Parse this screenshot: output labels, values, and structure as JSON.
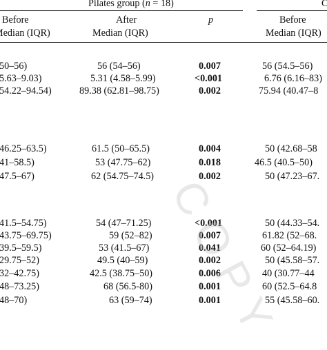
{
  "header": {
    "group_label": "Pilates group (",
    "group_n": "n",
    "group_suffix": " = 18)",
    "cut_right_glyph": "C",
    "col_before_1": "Before",
    "col_median_1": "Median (IQR)",
    "col_after": "After",
    "col_median_2": "Median (IQR)",
    "col_p": "p",
    "col_before_2": "Before",
    "col_median_3": "Median (IQR)"
  },
  "rows": [
    {
      "before": "50–56)",
      "after": "56 (54–56)",
      "p": "0.007",
      "before2": "56 (54.5–56)"
    },
    {
      "before": "5.63–9.03)",
      "after": "5.31 (4.58–5.99)",
      "p": "<0.001",
      "before2": "6.76 (6.16–83)"
    },
    {
      "before": "54.22–94.54)",
      "after": "89.38 (62.81–98.75)",
      "p": "0.002",
      "before2": "75.94 (40.47–8"
    },
    {
      "before": "46.25–63.5)",
      "after": "61.5 (50–65.5)",
      "p": "0.004",
      "before2": "50 (42.68–58"
    },
    {
      "before": "41–58.5)",
      "after": "53 (47.75–62)",
      "p": "0.018",
      "before2": "46.5 (40.5–50)"
    },
    {
      "before": "47.5–67)",
      "after": "62 (54.75–74.5)",
      "p": "0.002",
      "before2": "50 (47.23–67."
    },
    {
      "before": "41.5–54.75)",
      "after": "54 (47–71.25)",
      "p": "<0.001",
      "before2": "50 (44.33–54."
    },
    {
      "before": "43.75–69.75)",
      "after": "59 (52–82)",
      "p": "0.007",
      "before2": "61.82 (52–68."
    },
    {
      "before": "39.5–59.5)",
      "after": "53 (41.5–67)",
      "p": "0.041",
      "before2": "60 (52–64.19)"
    },
    {
      "before": "29.75–52)",
      "after": "49.5 (40–59)",
      "p": "0.002",
      "before2": "50 (45.58–57."
    },
    {
      "before": "32–42.75)",
      "after": "42.5 (38.75–50)",
      "p": "0.006",
      "before2": "40 (30.77–44"
    },
    {
      "before": "48–73.25)",
      "after": "68 (56.5-80)",
      "p": "0.001",
      "before2": "60 (52.5–64.8"
    },
    {
      "before": "48–70)",
      "after": "63 (59–74)",
      "p": "0.001",
      "before2": "55 (45.58–60."
    }
  ],
  "watermark": "COPY"
}
